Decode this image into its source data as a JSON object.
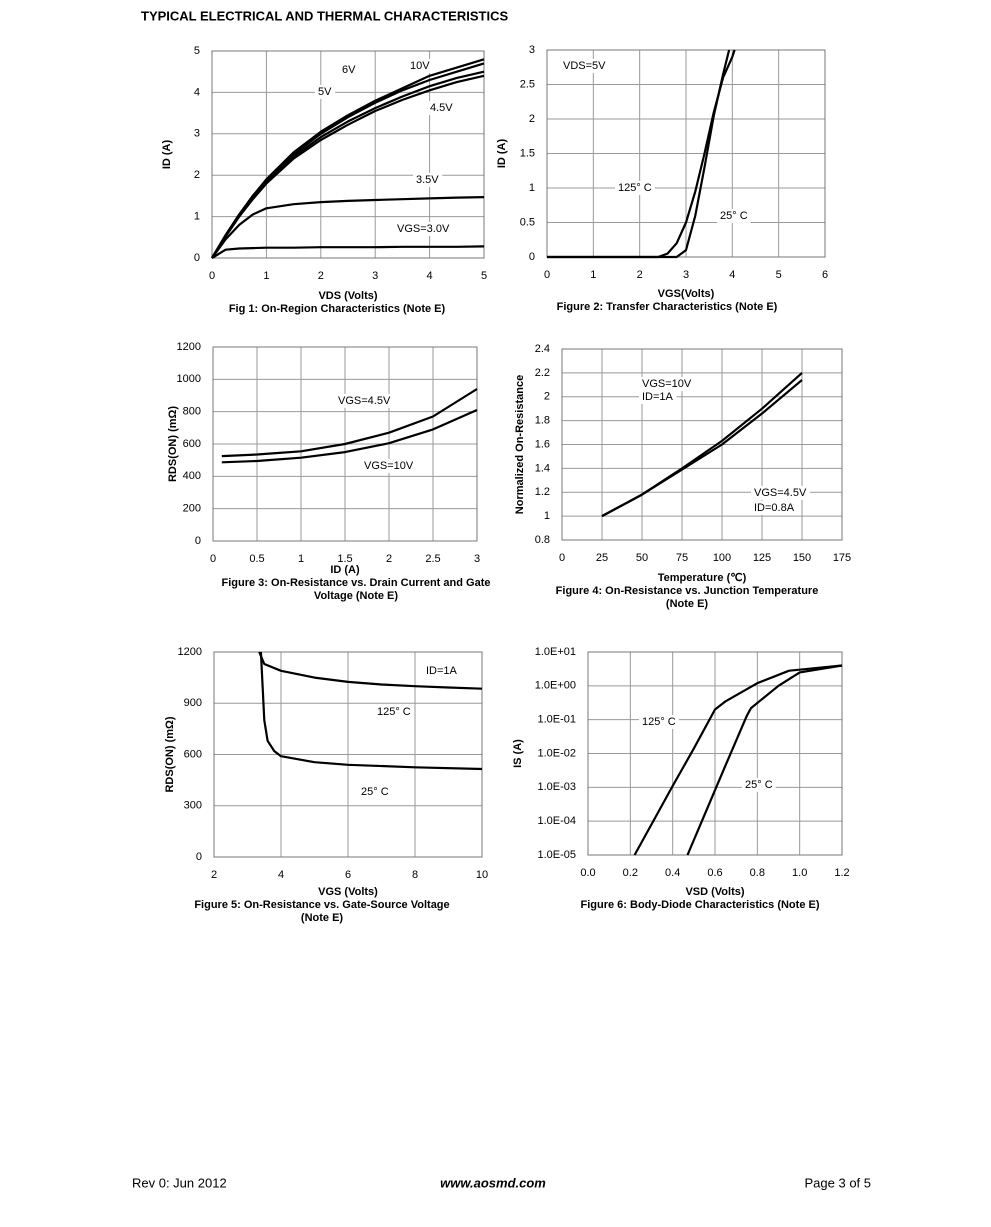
{
  "header": {
    "title": "TYPICAL ELECTRICAL AND THERMAL CHARACTERISTICS"
  },
  "chart_data": [
    {
      "type": "line",
      "title": [
        "Fig 1: On-Region Characteristics (Note E)"
      ],
      "x_label": "VDS (Volts)",
      "y_label": "ID (A)",
      "color": "#000000",
      "grid": true,
      "xlim": [
        0,
        5
      ],
      "ylim": [
        0,
        5
      ],
      "xticks": [
        0,
        1,
        2,
        3,
        4,
        5
      ],
      "yticks": [
        0,
        1,
        2,
        3,
        4,
        5
      ],
      "series": [
        {
          "name": "VGS=3.0V",
          "x": [
            0,
            0.25,
            0.5,
            0.75,
            1,
            1.5,
            2,
            2.5,
            3,
            3.5,
            4,
            4.5,
            5
          ],
          "values": [
            0,
            0.2,
            0.23,
            0.24,
            0.25,
            0.25,
            0.26,
            0.26,
            0.26,
            0.27,
            0.27,
            0.27,
            0.28
          ]
        },
        {
          "name": "3.5V",
          "x": [
            0,
            0.25,
            0.5,
            0.75,
            1,
            1.5,
            2,
            2.5,
            3,
            3.5,
            4,
            4.5,
            5
          ],
          "values": [
            0,
            0.45,
            0.8,
            1.05,
            1.2,
            1.3,
            1.35,
            1.38,
            1.4,
            1.42,
            1.44,
            1.46,
            1.47
          ]
        },
        {
          "name": "4.5V",
          "x": [
            0,
            0.25,
            0.5,
            0.75,
            1,
            1.5,
            2,
            2.5,
            3,
            3.5,
            4,
            4.5,
            5
          ],
          "values": [
            0,
            0.52,
            1.0,
            1.42,
            1.8,
            2.4,
            2.85,
            3.22,
            3.55,
            3.82,
            4.05,
            4.25,
            4.4
          ]
        },
        {
          "name": "5V",
          "x": [
            0,
            0.25,
            0.5,
            0.75,
            1,
            1.5,
            2,
            2.5,
            3,
            3.5,
            4,
            4.5,
            5
          ],
          "values": [
            0,
            0.53,
            1.02,
            1.45,
            1.83,
            2.45,
            2.92,
            3.3,
            3.62,
            3.9,
            4.15,
            4.35,
            4.5
          ]
        },
        {
          "name": "6V",
          "x": [
            0,
            0.25,
            0.5,
            0.75,
            1,
            1.5,
            2,
            2.5,
            3,
            3.5,
            4,
            4.5,
            5
          ],
          "values": [
            0,
            0.55,
            1.05,
            1.5,
            1.88,
            2.5,
            3.0,
            3.4,
            3.75,
            4.05,
            4.3,
            4.5,
            4.7
          ]
        },
        {
          "name": "10V",
          "x": [
            0,
            0.25,
            0.5,
            0.75,
            1,
            1.5,
            2,
            2.5,
            3,
            3.5,
            4,
            4.5,
            5
          ],
          "values": [
            0,
            0.55,
            1.05,
            1.5,
            1.9,
            2.55,
            3.05,
            3.45,
            3.8,
            4.1,
            4.4,
            4.6,
            4.8
          ]
        }
      ],
      "annotations": []
    },
    {
      "type": "line",
      "title": [
        "Figure 2: Transfer Characteristics (Note E)"
      ],
      "x_label": "VGS(Volts)",
      "y_label": "ID (A)",
      "color": "#000000",
      "grid": true,
      "xlim": [
        0,
        6
      ],
      "ylim": [
        0,
        3
      ],
      "xticks": [
        0,
        1,
        2,
        3,
        4,
        5,
        6
      ],
      "yticks": [
        0,
        0.5,
        1,
        1.5,
        2,
        2.5,
        3
      ],
      "series": [
        {
          "name": "125° C",
          "x": [
            0,
            2.4,
            2.6,
            2.8,
            3.0,
            3.2,
            3.4,
            3.6,
            3.8,
            4.0,
            4.05
          ],
          "values": [
            0,
            0,
            0.05,
            0.2,
            0.5,
            0.95,
            1.5,
            2.1,
            2.6,
            2.9,
            3.0
          ]
        },
        {
          "name": "25° C",
          "x": [
            0,
            2.8,
            3.0,
            3.2,
            3.4,
            3.6,
            3.8,
            3.93
          ],
          "values": [
            0,
            0,
            0.1,
            0.6,
            1.3,
            2.05,
            2.65,
            3.0
          ]
        }
      ],
      "annotations": [
        "VDS=5V"
      ]
    },
    {
      "type": "line",
      "title": [
        "Figure 3: On-Resistance vs. Drain Current and Gate",
        "Voltage (Note E)"
      ],
      "x_label": "ID (A)",
      "y_label": "RDS(ON) (mΩ)",
      "color": "#000000",
      "grid": true,
      "xlim": [
        0,
        3
      ],
      "ylim": [
        0,
        1200
      ],
      "xticks": [
        0,
        0.5,
        1,
        1.5,
        2,
        2.5,
        3
      ],
      "yticks": [
        0,
        200,
        400,
        600,
        800,
        1000,
        1200
      ],
      "series": [
        {
          "name": "VGS=4.5V",
          "x": [
            0.1,
            0.5,
            1,
            1.5,
            2,
            2.5,
            3
          ],
          "values": [
            525,
            535,
            555,
            600,
            670,
            770,
            940
          ]
        },
        {
          "name": "VGS=10V",
          "x": [
            0.1,
            0.5,
            1,
            1.5,
            2,
            2.5,
            3
          ],
          "values": [
            487,
            495,
            515,
            550,
            605,
            690,
            810
          ]
        }
      ],
      "annotations": []
    },
    {
      "type": "line",
      "title": [
        "Figure 4: On-Resistance vs. Junction Temperature",
        "(Note E)"
      ],
      "x_label": "Temperature (℃)",
      "y_label": "Normalized On-Resistance",
      "color": "#000000",
      "grid": true,
      "xlim": [
        0,
        175
      ],
      "ylim": [
        0.8,
        2.4
      ],
      "xticks": [
        0,
        25,
        50,
        75,
        100,
        125,
        150,
        175
      ],
      "yticks": [
        0.8,
        1,
        1.2,
        1.4,
        1.6,
        1.8,
        2,
        2.2,
        2.4
      ],
      "series": [
        {
          "name": "VGS=10V",
          "x": [
            25,
            50,
            75,
            100,
            125,
            150
          ],
          "values": [
            1,
            1.18,
            1.4,
            1.63,
            1.9,
            2.2
          ]
        },
        {
          "name": "VGS=4.5V",
          "x": [
            25,
            50,
            75,
            100,
            125,
            150
          ],
          "values": [
            1,
            1.18,
            1.39,
            1.6,
            1.86,
            2.14
          ]
        }
      ],
      "annotations": [
        "ID=1A",
        "ID=0.8A"
      ]
    },
    {
      "type": "line",
      "title": [
        "Figure 5: On-Resistance vs. Gate-Source Voltage",
        "(Note E)"
      ],
      "x_label": "VGS (Volts)",
      "y_label": "RDS(ON) (mΩ)",
      "color": "#000000",
      "grid": true,
      "xlim": [
        2,
        10
      ],
      "ylim": [
        0,
        1200
      ],
      "xticks": [
        2,
        4,
        6,
        8,
        10
      ],
      "yticks": [
        0,
        300,
        600,
        900,
        1200
      ],
      "series": [
        {
          "name": "125° C",
          "x": [
            3.35,
            3.5,
            4,
            5,
            6,
            7,
            8,
            9,
            10
          ],
          "values": [
            1200,
            1130,
            1090,
            1050,
            1025,
            1010,
            1000,
            992,
            985
          ]
        },
        {
          "name": "25° C",
          "x": [
            3.4,
            3.45,
            3.5,
            3.6,
            3.8,
            4,
            5,
            6,
            8,
            10
          ],
          "values": [
            1200,
            1000,
            800,
            680,
            620,
            590,
            555,
            540,
            525,
            515
          ]
        }
      ],
      "annotations": [
        "ID=1A"
      ]
    },
    {
      "type": "line",
      "title": [
        "Figure 6: Body-Diode Characteristics (Note E)"
      ],
      "x_label": "VSD (Volts)",
      "y_label": "IS (A)",
      "color": "#000000",
      "grid": true,
      "y_scale": "log",
      "xlim": [
        0,
        1.2
      ],
      "ylim": [
        1e-05,
        10
      ],
      "xticks": [
        {
          "value": 0,
          "label": "0.0"
        },
        0.2,
        0.4,
        0.6,
        0.8,
        {
          "value": 1,
          "label": "1.0"
        },
        1.2
      ],
      "yticks": [
        {
          "value": 1e-05,
          "label": "1.0E-05"
        },
        {
          "value": 0.0001,
          "label": "1.0E-04"
        },
        {
          "value": 0.001,
          "label": "1.0E-03"
        },
        {
          "value": 0.01,
          "label": "1.0E-02"
        },
        {
          "value": 0.1,
          "label": "1.0E-01"
        },
        {
          "value": 1,
          "label": "1.0E+00"
        },
        {
          "value": 10,
          "label": "1.0E+01"
        }
      ],
      "series": [
        {
          "name": "125° C",
          "x": [
            0.22,
            0.3,
            0.4,
            0.5,
            0.6,
            0.65,
            0.8,
            0.95,
            1.0,
            1.2
          ],
          "values": [
            1e-05,
            8e-05,
            0.0011,
            0.014,
            0.2,
            0.35,
            1.2,
            2.8,
            3.0,
            4.0
          ]
        },
        {
          "name": "25° C",
          "x": [
            0.47,
            0.55,
            0.65,
            0.75,
            0.77,
            0.9,
            1.0,
            1.2
          ],
          "values": [
            1e-05,
            0.00015,
            0.0045,
            0.13,
            0.22,
            1.0,
            2.5,
            4.0
          ]
        }
      ],
      "annotations": []
    }
  ],
  "footer": {
    "left": "Rev 0: Jun 2012",
    "center": "www.aosmd.com",
    "right": "Page 3 of 5"
  }
}
